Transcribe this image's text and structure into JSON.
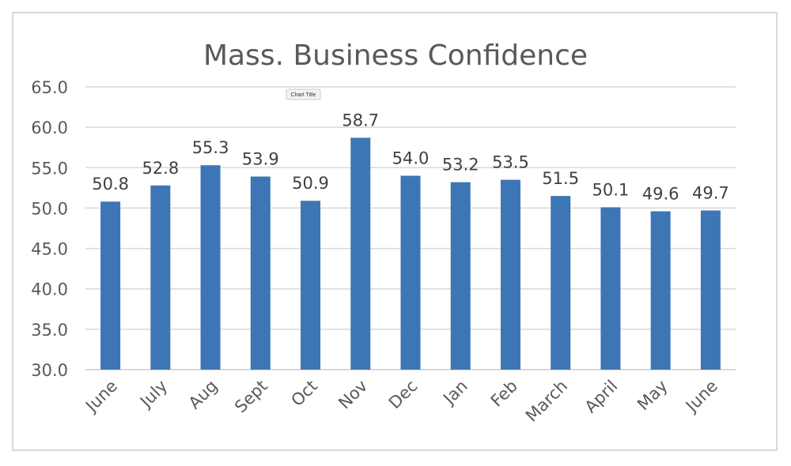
{
  "tooltip": "Chart Title",
  "chart_data": {
    "type": "bar",
    "title": "Mass. Business Confidence",
    "categories": [
      "June",
      "July",
      "Aug",
      "Sept",
      "Oct",
      "Nov",
      "Dec",
      "Jan",
      "Feb",
      "March",
      "April",
      "May",
      "June"
    ],
    "values": [
      50.8,
      52.8,
      55.3,
      53.9,
      50.9,
      58.7,
      54.0,
      53.2,
      53.5,
      51.5,
      50.1,
      49.6,
      49.7
    ],
    "value_labels": [
      "50.8",
      "52.8",
      "55.3",
      "53.9",
      "50.9",
      "58.7",
      "54.0",
      "53.2",
      "53.5",
      "51.5",
      "50.1",
      "49.6",
      "49.7"
    ],
    "y_ticks": [
      "30.0",
      "35.0",
      "40.0",
      "45.0",
      "50.0",
      "55.0",
      "60.0",
      "65.0"
    ],
    "ylim": [
      30,
      65
    ],
    "xlabel": "",
    "ylabel": "",
    "grid": true,
    "legend": "none",
    "bar_color": "#3d76b4",
    "grid_color": "#d9d9d9"
  }
}
